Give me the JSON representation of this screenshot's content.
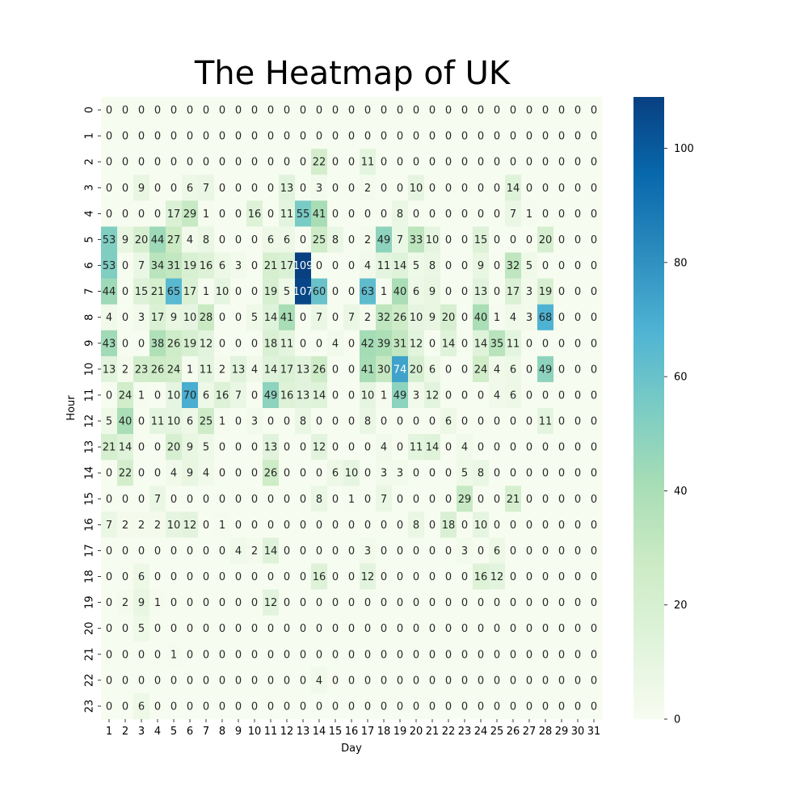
{
  "chart_data": {
    "type": "heatmap",
    "title": "The Heatmap of UK",
    "xlabel": "Day",
    "ylabel": "Hour",
    "x_categories": [
      "1",
      "2",
      "3",
      "4",
      "5",
      "6",
      "7",
      "8",
      "9",
      "10",
      "11",
      "12",
      "13",
      "14",
      "15",
      "16",
      "17",
      "18",
      "19",
      "20",
      "21",
      "22",
      "23",
      "24",
      "25",
      "26",
      "27",
      "28",
      "29",
      "30",
      "31"
    ],
    "y_categories": [
      "0",
      "1",
      "2",
      "3",
      "4",
      "5",
      "6",
      "7",
      "8",
      "9",
      "10",
      "11",
      "12",
      "13",
      "14",
      "15",
      "16",
      "17",
      "18",
      "19",
      "20",
      "21",
      "22",
      "23"
    ],
    "values": [
      [
        0,
        0,
        0,
        0,
        0,
        0,
        0,
        0,
        0,
        0,
        0,
        0,
        0,
        0,
        0,
        0,
        0,
        0,
        0,
        0,
        0,
        0,
        0,
        0,
        0,
        0,
        0,
        0,
        0,
        0,
        0
      ],
      [
        0,
        0,
        0,
        0,
        0,
        0,
        0,
        0,
        0,
        0,
        0,
        0,
        0,
        0,
        0,
        0,
        0,
        0,
        0,
        0,
        0,
        0,
        0,
        0,
        0,
        0,
        0,
        0,
        0,
        0,
        0
      ],
      [
        0,
        0,
        0,
        0,
        0,
        0,
        0,
        0,
        0,
        0,
        0,
        0,
        0,
        22,
        0,
        0,
        11,
        0,
        0,
        0,
        0,
        0,
        0,
        0,
        0,
        0,
        0,
        0,
        0,
        0,
        0
      ],
      [
        0,
        0,
        9,
        0,
        0,
        6,
        7,
        0,
        0,
        0,
        0,
        13,
        0,
        3,
        0,
        0,
        2,
        0,
        0,
        10,
        0,
        0,
        0,
        0,
        0,
        14,
        0,
        0,
        0,
        0,
        0
      ],
      [
        0,
        0,
        0,
        0,
        17,
        29,
        1,
        0,
        0,
        16,
        0,
        11,
        55,
        41,
        0,
        0,
        0,
        0,
        8,
        0,
        0,
        0,
        0,
        0,
        0,
        7,
        1,
        0,
        0,
        0,
        0
      ],
      [
        53,
        9,
        20,
        44,
        27,
        4,
        8,
        0,
        0,
        0,
        6,
        6,
        0,
        25,
        8,
        0,
        2,
        49,
        7,
        33,
        10,
        0,
        0,
        15,
        0,
        0,
        0,
        20,
        0,
        0,
        0
      ],
      [
        53,
        0,
        7,
        34,
        31,
        19,
        16,
        6,
        3,
        0,
        21,
        17,
        109,
        0,
        0,
        0,
        4,
        11,
        14,
        5,
        8,
        0,
        0,
        9,
        0,
        32,
        5,
        0,
        0,
        0,
        0
      ],
      [
        44,
        0,
        15,
        21,
        65,
        17,
        1,
        10,
        0,
        0,
        19,
        5,
        107,
        60,
        0,
        0,
        63,
        1,
        40,
        6,
        9,
        0,
        0,
        13,
        0,
        17,
        3,
        19,
        0,
        0,
        0
      ],
      [
        4,
        0,
        3,
        17,
        9,
        10,
        28,
        0,
        0,
        5,
        14,
        41,
        0,
        7,
        0,
        7,
        2,
        32,
        26,
        10,
        9,
        20,
        0,
        40,
        1,
        4,
        3,
        68,
        0,
        0,
        0
      ],
      [
        43,
        0,
        0,
        38,
        26,
        19,
        12,
        0,
        0,
        0,
        18,
        11,
        0,
        0,
        4,
        0,
        42,
        39,
        31,
        12,
        0,
        14,
        0,
        14,
        35,
        11,
        0,
        0,
        0,
        0,
        0
      ],
      [
        13,
        2,
        23,
        26,
        24,
        1,
        11,
        2,
        13,
        4,
        14,
        17,
        13,
        26,
        0,
        0,
        41,
        30,
        74,
        20,
        6,
        0,
        0,
        24,
        4,
        6,
        0,
        49,
        0,
        0,
        0
      ],
      [
        0,
        24,
        1,
        0,
        10,
        70,
        6,
        16,
        7,
        0,
        49,
        16,
        13,
        14,
        0,
        0,
        10,
        1,
        49,
        3,
        12,
        0,
        0,
        0,
        4,
        6,
        0,
        0,
        0,
        0,
        0
      ],
      [
        5,
        40,
        0,
        11,
        10,
        6,
        25,
        1,
        0,
        3,
        0,
        0,
        8,
        0,
        0,
        0,
        8,
        0,
        0,
        0,
        0,
        6,
        0,
        0,
        0,
        0,
        0,
        11,
        0,
        0,
        0
      ],
      [
        21,
        14,
        0,
        0,
        20,
        9,
        5,
        0,
        0,
        0,
        13,
        0,
        0,
        12,
        0,
        0,
        0,
        4,
        0,
        11,
        14,
        0,
        4,
        0,
        0,
        0,
        0,
        0,
        0,
        0,
        0
      ],
      [
        0,
        22,
        0,
        0,
        4,
        9,
        4,
        0,
        0,
        0,
        26,
        0,
        0,
        0,
        6,
        10,
        0,
        3,
        3,
        0,
        0,
        0,
        5,
        8,
        0,
        0,
        0,
        0,
        0,
        0,
        0
      ],
      [
        0,
        0,
        0,
        7,
        0,
        0,
        0,
        0,
        0,
        0,
        0,
        0,
        0,
        8,
        0,
        1,
        0,
        7,
        0,
        0,
        0,
        0,
        29,
        0,
        0,
        21,
        0,
        0,
        0,
        0,
        0
      ],
      [
        7,
        2,
        2,
        2,
        10,
        12,
        0,
        1,
        0,
        0,
        0,
        0,
        0,
        0,
        0,
        0,
        0,
        0,
        0,
        8,
        0,
        18,
        0,
        10,
        0,
        0,
        0,
        0,
        0,
        0,
        0
      ],
      [
        0,
        0,
        0,
        0,
        0,
        0,
        0,
        0,
        4,
        2,
        14,
        0,
        0,
        0,
        0,
        0,
        3,
        0,
        0,
        0,
        0,
        0,
        3,
        0,
        6,
        0,
        0,
        0,
        0,
        0,
        0
      ],
      [
        0,
        0,
        6,
        0,
        0,
        0,
        0,
        0,
        0,
        0,
        0,
        0,
        0,
        16,
        0,
        0,
        12,
        0,
        0,
        0,
        0,
        0,
        0,
        16,
        12,
        0,
        0,
        0,
        0,
        0,
        0
      ],
      [
        0,
        2,
        9,
        1,
        0,
        0,
        0,
        0,
        0,
        0,
        12,
        0,
        0,
        0,
        0,
        0,
        0,
        0,
        0,
        0,
        0,
        0,
        0,
        0,
        0,
        0,
        0,
        0,
        0,
        0,
        0
      ],
      [
        0,
        0,
        5,
        0,
        0,
        0,
        0,
        0,
        0,
        0,
        0,
        0,
        0,
        0,
        0,
        0,
        0,
        0,
        0,
        0,
        0,
        0,
        0,
        0,
        0,
        0,
        0,
        0,
        0,
        0,
        0
      ],
      [
        0,
        0,
        0,
        0,
        1,
        0,
        0,
        0,
        0,
        0,
        0,
        0,
        0,
        0,
        0,
        0,
        0,
        0,
        0,
        0,
        0,
        0,
        0,
        0,
        0,
        0,
        0,
        0,
        0,
        0,
        0
      ],
      [
        0,
        0,
        0,
        0,
        0,
        0,
        0,
        0,
        0,
        0,
        0,
        0,
        0,
        4,
        0,
        0,
        0,
        0,
        0,
        0,
        0,
        0,
        0,
        0,
        0,
        0,
        0,
        0,
        0,
        0,
        0
      ],
      [
        0,
        0,
        6,
        0,
        0,
        0,
        0,
        0,
        0,
        0,
        0,
        0,
        0,
        0,
        0,
        0,
        0,
        0,
        0,
        0,
        0,
        0,
        0,
        0,
        0,
        0,
        0,
        0,
        0,
        0,
        0
      ]
    ],
    "colorscale": {
      "name": "GnBu",
      "min": 0,
      "max": 109,
      "ticks": [
        "0",
        "20",
        "40",
        "60",
        "80",
        "100"
      ],
      "stops": [
        "#f7fcf0",
        "#e0f3db",
        "#ccebc5",
        "#a8ddb5",
        "#7bccc4",
        "#4eb3d3",
        "#2b8cbe",
        "#0868ac",
        "#084081"
      ]
    },
    "grid": false,
    "legend": "colorbar-right"
  }
}
